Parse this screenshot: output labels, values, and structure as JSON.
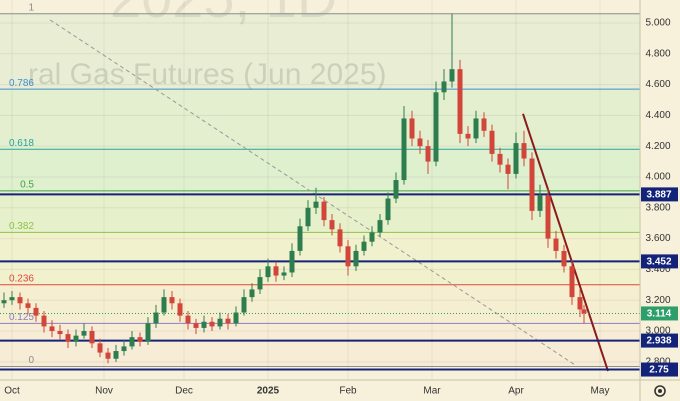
{
  "chart_data": {
    "type": "candlestick",
    "watermark": [
      "2025, 1D",
      "ral Gas Futures (Jun 2025)"
    ],
    "xlim": [
      -3,
      157
    ],
    "ylim": [
      2.682,
      5.149
    ],
    "xticks": [
      {
        "value": 0,
        "label": "Oct"
      },
      {
        "value": 23,
        "label": "Nov"
      },
      {
        "value": 43,
        "label": "Dec"
      },
      {
        "value": 64,
        "label": "2025"
      },
      {
        "value": 84,
        "label": "Feb"
      },
      {
        "value": 105,
        "label": "Mar"
      },
      {
        "value": 126,
        "label": "Apr"
      },
      {
        "value": 147,
        "label": "May"
      }
    ],
    "yticks": [
      {
        "value": 5.0,
        "label": "5.000"
      },
      {
        "value": 4.8,
        "label": "4.800"
      },
      {
        "value": 4.6,
        "label": "4.600"
      },
      {
        "value": 4.4,
        "label": "4.400"
      },
      {
        "value": 4.2,
        "label": "4.200"
      },
      {
        "value": 4.0,
        "label": "4.000"
      },
      {
        "value": 3.8,
        "label": "3.800"
      },
      {
        "value": 3.6,
        "label": "3.600"
      },
      {
        "value": 3.4,
        "label": "3.400"
      },
      {
        "value": 3.2,
        "label": "3.200"
      },
      {
        "value": 3.0,
        "label": "3.000"
      },
      {
        "value": 2.8,
        "label": "2.800"
      }
    ],
    "up_color": "#2e7d4f",
    "down_color": "#d2453a",
    "candles": [
      [
        -2,
        3.18,
        3.25,
        3.15,
        3.2
      ],
      [
        0,
        3.2,
        3.26,
        3.17,
        3.22
      ],
      [
        2,
        3.22,
        3.25,
        3.14,
        3.18
      ],
      [
        4,
        3.18,
        3.21,
        3.11,
        3.15
      ],
      [
        6,
        3.15,
        3.18,
        3.06,
        3.1
      ],
      [
        8,
        3.1,
        3.13,
        2.99,
        3.03
      ],
      [
        10,
        3.03,
        3.07,
        2.96,
        3.0
      ],
      [
        12,
        3.0,
        3.04,
        2.94,
        2.98
      ],
      [
        14,
        2.98,
        3.01,
        2.89,
        2.93
      ],
      [
        16,
        2.93,
        3.01,
        2.9,
        2.97
      ],
      [
        18,
        2.97,
        3.05,
        2.95,
        3.0
      ],
      [
        20,
        3.0,
        3.03,
        2.89,
        2.92
      ],
      [
        22,
        2.92,
        2.95,
        2.83,
        2.86
      ],
      [
        24,
        2.86,
        2.89,
        2.79,
        2.82
      ],
      [
        26,
        2.82,
        2.91,
        2.8,
        2.87
      ],
      [
        28,
        2.87,
        2.94,
        2.84,
        2.9
      ],
      [
        30,
        2.9,
        3.0,
        2.88,
        2.96
      ],
      [
        32,
        2.96,
        2.99,
        2.9,
        2.93
      ],
      [
        34,
        2.93,
        3.09,
        2.91,
        3.05
      ],
      [
        36,
        3.05,
        3.17,
        3.02,
        3.12
      ],
      [
        38,
        3.12,
        3.27,
        3.1,
        3.22
      ],
      [
        40,
        3.22,
        3.26,
        3.14,
        3.18
      ],
      [
        42,
        3.18,
        3.21,
        3.06,
        3.1
      ],
      [
        44,
        3.1,
        3.13,
        3.01,
        3.05
      ],
      [
        46,
        3.05,
        3.08,
        2.98,
        3.02
      ],
      [
        48,
        3.02,
        3.1,
        2.99,
        3.06
      ],
      [
        50,
        3.06,
        3.09,
        3.0,
        3.03
      ],
      [
        52,
        3.03,
        3.12,
        3.01,
        3.08
      ],
      [
        54,
        3.08,
        3.11,
        3.01,
        3.05
      ],
      [
        56,
        3.05,
        3.16,
        3.03,
        3.12
      ],
      [
        58,
        3.12,
        3.27,
        3.1,
        3.22
      ],
      [
        60,
        3.22,
        3.31,
        3.19,
        3.27
      ],
      [
        62,
        3.27,
        3.4,
        3.24,
        3.35
      ],
      [
        64,
        3.35,
        3.47,
        3.32,
        3.42
      ],
      [
        66,
        3.42,
        3.45,
        3.32,
        3.36
      ],
      [
        68,
        3.36,
        3.42,
        3.33,
        3.38
      ],
      [
        70,
        3.38,
        3.57,
        3.35,
        3.52
      ],
      [
        72,
        3.52,
        3.73,
        3.49,
        3.68
      ],
      [
        74,
        3.68,
        3.85,
        3.65,
        3.8
      ],
      [
        76,
        3.8,
        3.93,
        3.76,
        3.84
      ],
      [
        78,
        3.84,
        3.87,
        3.68,
        3.72
      ],
      [
        80,
        3.72,
        3.76,
        3.62,
        3.66
      ],
      [
        82,
        3.66,
        3.7,
        3.51,
        3.55
      ],
      [
        84,
        3.55,
        3.59,
        3.36,
        3.42
      ],
      [
        86,
        3.42,
        3.56,
        3.39,
        3.52
      ],
      [
        88,
        3.52,
        3.62,
        3.49,
        3.58
      ],
      [
        90,
        3.58,
        3.68,
        3.55,
        3.64
      ],
      [
        92,
        3.64,
        3.76,
        3.61,
        3.72
      ],
      [
        94,
        3.72,
        3.9,
        3.69,
        3.86
      ],
      [
        96,
        3.86,
        4.03,
        3.83,
        3.98
      ],
      [
        98,
        3.98,
        4.46,
        3.95,
        4.38
      ],
      [
        100,
        4.38,
        4.43,
        4.2,
        4.25
      ],
      [
        102,
        4.25,
        4.3,
        4.15,
        4.2
      ],
      [
        104,
        4.2,
        4.24,
        4.02,
        4.1
      ],
      [
        106,
        4.1,
        4.62,
        4.07,
        4.55
      ],
      [
        108,
        4.55,
        4.7,
        4.5,
        4.62
      ],
      [
        110,
        4.62,
        5.06,
        4.58,
        4.7
      ],
      [
        112,
        4.7,
        4.76,
        4.22,
        4.28
      ],
      [
        114,
        4.28,
        4.33,
        4.2,
        4.25
      ],
      [
        116,
        4.25,
        4.43,
        4.22,
        4.38
      ],
      [
        118,
        4.38,
        4.42,
        4.26,
        4.3
      ],
      [
        120,
        4.3,
        4.34,
        4.1,
        4.15
      ],
      [
        122,
        4.15,
        4.19,
        4.03,
        4.08
      ],
      [
        124,
        4.08,
        4.12,
        3.92,
        4.02
      ],
      [
        126,
        4.02,
        4.29,
        3.99,
        4.22
      ],
      [
        128,
        4.22,
        4.3,
        4.07,
        4.12
      ],
      [
        130,
        4.12,
        4.16,
        3.72,
        3.78
      ],
      [
        132,
        3.78,
        3.95,
        3.74,
        3.88
      ],
      [
        134,
        3.88,
        3.92,
        3.54,
        3.6
      ],
      [
        136,
        3.6,
        3.65,
        3.47,
        3.52
      ],
      [
        138,
        3.52,
        3.56,
        3.38,
        3.42
      ],
      [
        140,
        3.42,
        3.46,
        3.17,
        3.22
      ],
      [
        142,
        3.22,
        3.27,
        3.09,
        3.14
      ],
      [
        143,
        3.14,
        3.17,
        3.05,
        3.114
      ]
    ],
    "fib_levels": [
      {
        "ratio": 1,
        "price": 5.06,
        "color": "#8c8c8c",
        "zone": "#e8edd4"
      },
      {
        "ratio": 0.786,
        "price": 4.57,
        "color": "#3f8fd2",
        "zone": "#e3efcf"
      },
      {
        "ratio": 0.618,
        "price": 4.18,
        "color": "#26a69a",
        "zone": "#dff0cf"
      },
      {
        "ratio": 0.5,
        "price": 3.91,
        "color": "#43a047",
        "zone": "#e6f1cc"
      },
      {
        "ratio": 0.382,
        "price": 3.64,
        "color": "#8bc34a",
        "zone": "#f1f2cd"
      },
      {
        "ratio": 0.236,
        "price": 3.3,
        "color": "#e0463a",
        "zone": "#f6eed0"
      },
      {
        "ratio": 0.125,
        "price": 3.05,
        "color": "#8e7cc3",
        "zone": "#f7ecd5"
      },
      {
        "ratio": 0,
        "price": 2.77,
        "color": "#8c8c8c"
      }
    ],
    "levels": [
      3.887,
      3.452,
      2.938,
      2.75
    ],
    "level_color": "#14237a",
    "last_price": 3.114,
    "last_color": "#2e9e6a",
    "trend_lines": [
      {
        "x": [
          9.5,
          140.75
        ],
        "y": [
          5.02,
          2.78
        ],
        "color": "#999999",
        "dashed": true
      },
      {
        "x": [
          127.75,
          149
        ],
        "y": [
          4.41,
          2.74
        ],
        "color": "#8b1a1a",
        "dashed": false
      }
    ]
  }
}
